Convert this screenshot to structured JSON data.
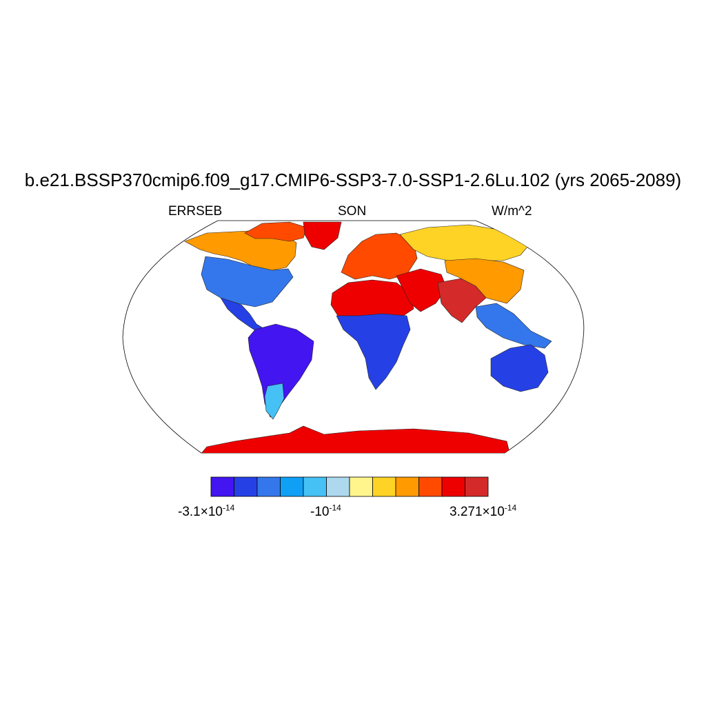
{
  "title": "b.e21.BSSP370cmip6.f09_g17.CMIP6-SSP3-7.0-SSP1-2.6Lu.102 (yrs 2065-2089)",
  "left_label": "ERRSEB",
  "center_label": "SON",
  "right_label": "W/m^2",
  "colorbar": {
    "colors": [
      "#4315f0",
      "#2541e6",
      "#3477ec",
      "#0fa0f6",
      "#45c1f5",
      "#add8ee",
      "#fff58c",
      "#ffd325",
      "#ff9a00",
      "#ff4a00",
      "#ee0000",
      "#d42a2a"
    ],
    "labels": {
      "left": {
        "mantissa": "-3.1",
        "times": "×",
        "base": "10",
        "exponent": "-14"
      },
      "mid": {
        "mantissa": "-",
        "base": "10",
        "exponent": "-14"
      },
      "right": {
        "mantissa": "3.271",
        "times": "×",
        "base": "10",
        "exponent": "-14"
      }
    }
  },
  "map": {
    "projection": "robinson",
    "ocean_color": "#ffffff",
    "land_regions": [
      {
        "name": "north-america-north",
        "color": "#ff9a00"
      },
      {
        "name": "canada-arctic",
        "color": "#ff4a00"
      },
      {
        "name": "greenland",
        "color": "#ee0000"
      },
      {
        "name": "usa",
        "color": "#3477ec"
      },
      {
        "name": "central-america",
        "color": "#2541e6"
      },
      {
        "name": "south-america",
        "color": "#4315f0"
      },
      {
        "name": "patagonia",
        "color": "#45c1f5"
      },
      {
        "name": "europe",
        "color": "#ff4a00"
      },
      {
        "name": "russia-siberia",
        "color": "#ffd325"
      },
      {
        "name": "sahara",
        "color": "#ee0000"
      },
      {
        "name": "central-africa",
        "color": "#2541e6"
      },
      {
        "name": "middle-east",
        "color": "#ee0000"
      },
      {
        "name": "south-asia",
        "color": "#d42a2a"
      },
      {
        "name": "china",
        "color": "#ff9a00"
      },
      {
        "name": "southeast-asia",
        "color": "#3477ec"
      },
      {
        "name": "australia",
        "color": "#2541e6"
      },
      {
        "name": "antarctica",
        "color": "#ee0000"
      }
    ]
  }
}
